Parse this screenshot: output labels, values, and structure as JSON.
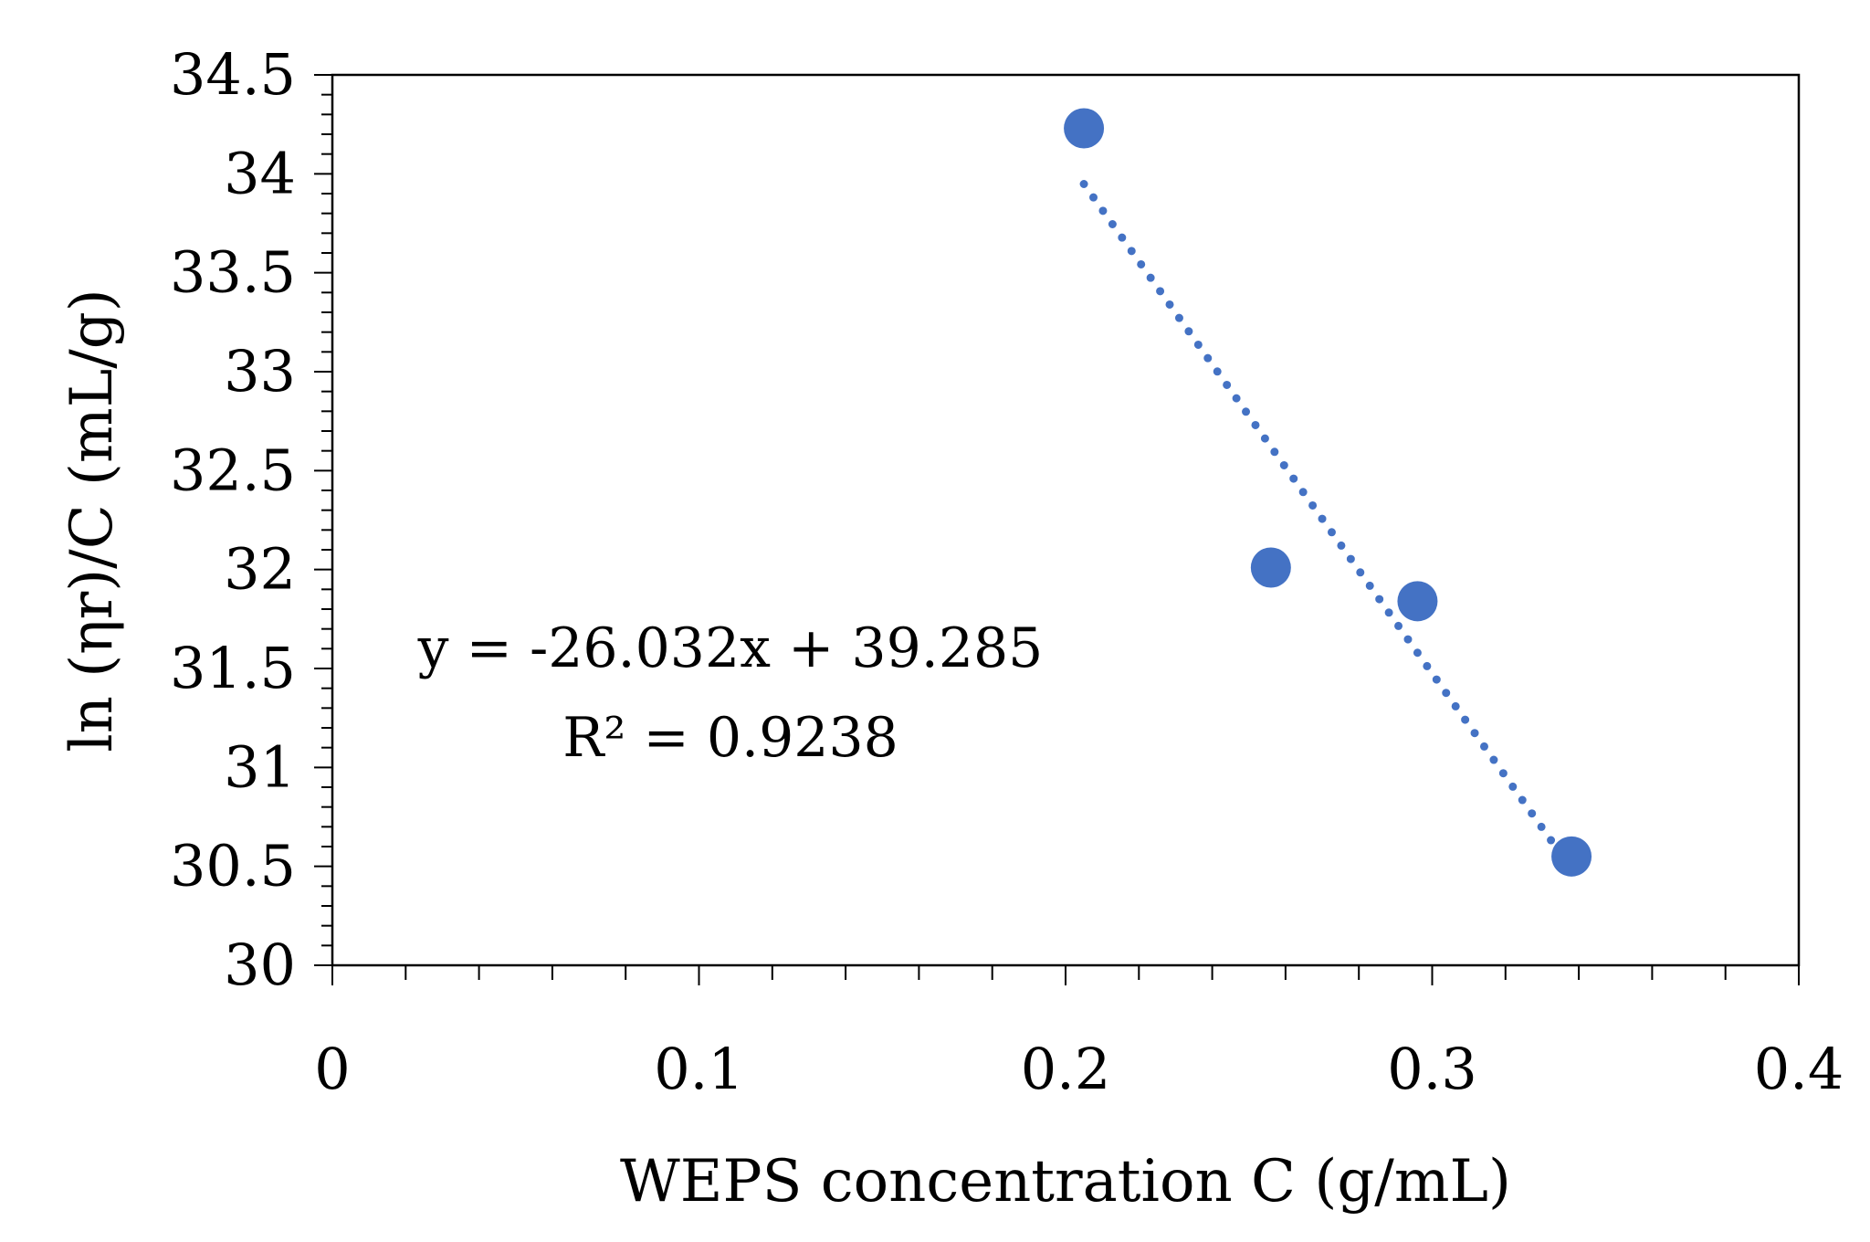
{
  "chart_data": {
    "type": "scatter",
    "title": "",
    "xlabel": "WEPS concentration C (g/mL)",
    "ylabel": "ln (ηr)/C  (mL/g)",
    "xlim": [
      0,
      0.4
    ],
    "ylim": [
      30,
      34.5
    ],
    "x_ticks": [
      0,
      0.1,
      0.2,
      0.3,
      0.4
    ],
    "x_tick_labels": [
      "0",
      "0.1",
      "0.2",
      "0.3",
      "0.4"
    ],
    "x_minor_step": 0.02,
    "y_ticks": [
      30,
      30.5,
      31,
      31.5,
      32,
      32.5,
      33,
      33.5,
      34,
      34.5
    ],
    "y_tick_labels": [
      "30",
      "30.5",
      "31",
      "31.5",
      "32",
      "32.5",
      "33",
      "33.5",
      "34",
      "34.5"
    ],
    "y_minor_step": 0.1,
    "grid": false,
    "series": [
      {
        "name": "ln (ηr)/C",
        "color": "#4472C4",
        "marker": "circle",
        "x": [
          0.205,
          0.256,
          0.296,
          0.338
        ],
        "y": [
          34.23,
          32.01,
          31.84,
          30.55
        ]
      }
    ],
    "trendline": {
      "type": "linear",
      "style": "dotted",
      "color": "#4472C4",
      "slope": -26.032,
      "intercept": 39.285,
      "x_range": [
        0.205,
        0.338
      ],
      "equation_label": "y = -26.032x + 39.285",
      "r2_label": "R² = 0.9238"
    }
  }
}
